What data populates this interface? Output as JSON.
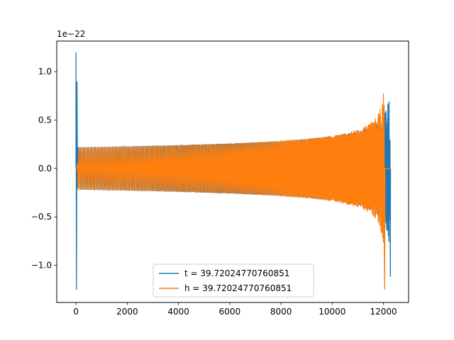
{
  "chart_data": {
    "type": "line",
    "offset_text": "1e−22",
    "xlim": [
      -750,
      12980
    ],
    "ylim": [
      -1.384,
      1.316
    ],
    "x_ticks": [
      0,
      2000,
      4000,
      6000,
      8000,
      10000,
      12000
    ],
    "x_tick_labels": [
      "0",
      "2000",
      "4000",
      "6000",
      "8000",
      "10000",
      "12000"
    ],
    "y_ticks": [
      -1.0,
      -0.5,
      0.0,
      0.5,
      1.0
    ],
    "y_tick_labels": [
      "−1.0",
      "−0.5",
      "0.0",
      "0.5",
      "1.0"
    ],
    "grid": false,
    "legend_position": "bottom-center",
    "series": [
      {
        "name": "t = 39.72024770760851",
        "color": "#1f77b4",
        "description_values": {
          "x_start": 0,
          "x_end": 12290,
          "steady_amplitude": 0.22,
          "peak_amplitude_end": 1.22,
          "initial_spike_max": 1.2,
          "initial_spike_min": -1.25,
          "chirp_peak_x": 12260
        }
      },
      {
        "name": "h = 39.72024770760851",
        "color": "#ff7f0e",
        "description_values": {
          "x_start": 0,
          "x_end": 12290,
          "steady_amplitude": 0.22,
          "peak_amplitude_end": 1.22,
          "chirp_peak_x": 12030
        }
      }
    ]
  }
}
